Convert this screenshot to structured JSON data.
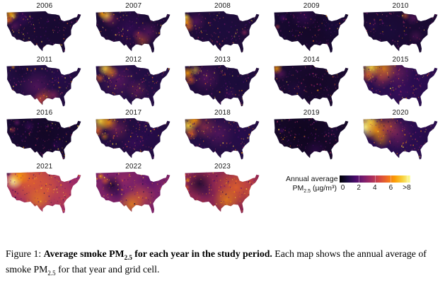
{
  "figure": {
    "legend": {
      "title": "Annual average",
      "unit_pm": "PM",
      "unit_sub": "2.5",
      "unit_rest": " (µg/m³)",
      "tick_labels": [
        "0",
        "2",
        "4",
        "6",
        ">8"
      ],
      "tick_values": [
        0,
        2,
        4,
        6,
        8
      ],
      "scale_min": 0,
      "scale_max": 8,
      "colormap": [
        "#000004",
        "#1b0c41",
        "#4a0c6b",
        "#781c6d",
        "#a52c60",
        "#cf4446",
        "#ed6925",
        "#fb9b06",
        "#f7d03c",
        "#fcffa4"
      ],
      "speckle_bright_colors": [
        "#ed6925",
        "#fb9b06",
        "#f7d03c"
      ],
      "speckle_dark_colors": [
        "#1b0c41",
        "#4a0c6b",
        "#781c6d",
        "#a52c60"
      ]
    },
    "maps": [
      {
        "year": "2006",
        "base": "#1c0b36",
        "speckle": 0.25,
        "blobs": [
          [
            6,
            5,
            11,
            "#fca50a",
            0.9
          ],
          [
            3,
            13,
            7,
            "#ed6925",
            0.75
          ],
          [
            9,
            8,
            4,
            "#f7d03c",
            0.9
          ],
          [
            11,
            21,
            9,
            "#781c6d",
            0.5
          ],
          [
            20,
            10,
            14,
            "#4a0c6b",
            0.5
          ],
          [
            65,
            25,
            38,
            "#14082c",
            0.55
          ]
        ]
      },
      {
        "year": "2007",
        "base": "#1c0b36",
        "speckle": 0.3,
        "blobs": [
          [
            15,
            7,
            10,
            "#f7d03c",
            0.95
          ],
          [
            9,
            4,
            7,
            "#fb9b06",
            0.85
          ],
          [
            20,
            12,
            12,
            "#a52c60",
            0.5
          ],
          [
            62,
            40,
            12,
            "#ed6925",
            0.5
          ],
          [
            56,
            33,
            8,
            "#cf4446",
            0.5
          ],
          [
            70,
            30,
            16,
            "#781c6d",
            0.5
          ],
          [
            45,
            25,
            28,
            "#4a0c6b",
            0.45
          ]
        ]
      },
      {
        "year": "2008",
        "base": "#1e0c38",
        "speckle": 0.22,
        "blobs": [
          [
            3,
            16,
            10,
            "#fb9b06",
            0.95
          ],
          [
            2,
            9,
            6,
            "#f7d03c",
            0.85
          ],
          [
            6,
            23,
            7,
            "#ed6925",
            0.6
          ],
          [
            15,
            15,
            14,
            "#781c6d",
            0.5
          ],
          [
            50,
            25,
            35,
            "#1b0c41",
            0.5
          ],
          [
            79,
            30,
            5,
            "#a52c60",
            0.6
          ]
        ]
      },
      {
        "year": "2009",
        "base": "#170930",
        "speckle": 0.12,
        "blobs": [
          [
            50,
            22,
            42,
            "#12061f",
            0.5
          ],
          [
            5,
            22,
            4,
            "#cf4446",
            0.55
          ],
          [
            40,
            8,
            18,
            "#4a0c6b",
            0.45
          ],
          [
            12,
            10,
            6,
            "#4a0c6b",
            0.6
          ],
          [
            78,
            20,
            20,
            "#1b0c41",
            0.5
          ]
        ]
      },
      {
        "year": "2010",
        "base": "#1a0a32",
        "speckle": 0.15,
        "blobs": [
          [
            56,
            7,
            6,
            "#ed6925",
            0.55
          ],
          [
            66,
            10,
            10,
            "#781c6d",
            0.5
          ],
          [
            35,
            28,
            28,
            "#1b0c41",
            0.5
          ],
          [
            70,
            35,
            10,
            "#781c6d",
            0.35
          ],
          [
            12,
            20,
            10,
            "#2a0a50",
            0.6
          ]
        ]
      },
      {
        "year": "2011",
        "base": "#220d40",
        "speckle": 0.22,
        "blobs": [
          [
            44,
            49,
            11,
            "#cf4446",
            0.8
          ],
          [
            50,
            43,
            12,
            "#ed6925",
            0.5
          ],
          [
            62,
            42,
            10,
            "#a52c60",
            0.6
          ],
          [
            40,
            30,
            22,
            "#781c6d",
            0.5
          ],
          [
            9,
            4,
            3,
            "#fb9b06",
            0.7
          ],
          [
            20,
            10,
            16,
            "#14082c",
            0.6
          ],
          [
            70,
            18,
            18,
            "#2a0a50",
            0.5
          ]
        ]
      },
      {
        "year": "2012",
        "base": "#240e44",
        "speckle": 0.3,
        "blobs": [
          [
            13,
            6,
            10,
            "#f7d03c",
            0.95
          ],
          [
            21,
            11,
            10,
            "#fb9b06",
            0.8
          ],
          [
            6,
            19,
            7,
            "#ed6925",
            0.65
          ],
          [
            30,
            22,
            24,
            "#781c6d",
            0.55
          ],
          [
            78,
            14,
            20,
            "#1b0c41",
            0.6
          ],
          [
            55,
            35,
            15,
            "#a52c60",
            0.4
          ]
        ]
      },
      {
        "year": "2013",
        "base": "#200c3c",
        "speckle": 0.22,
        "blobs": [
          [
            4,
            12,
            9,
            "#fb9b06",
            0.9
          ],
          [
            8,
            21,
            8,
            "#ed6925",
            0.7
          ],
          [
            14,
            8,
            8,
            "#f7d03c",
            0.6
          ],
          [
            28,
            18,
            20,
            "#781c6d",
            0.5
          ],
          [
            70,
            25,
            28,
            "#160b39",
            0.55
          ],
          [
            60,
            40,
            10,
            "#4a0c6b",
            0.4
          ]
        ]
      },
      {
        "year": "2014",
        "base": "#190a30",
        "speckle": 0.15,
        "blobs": [
          [
            4,
            6,
            8,
            "#fb9b06",
            0.85
          ],
          [
            9,
            13,
            9,
            "#781c6d",
            0.55
          ],
          [
            55,
            26,
            38,
            "#12061f",
            0.55
          ],
          [
            30,
            35,
            15,
            "#2a0a50",
            0.4
          ]
        ]
      },
      {
        "year": "2015",
        "base": "#2a0e4e",
        "speckle": 0.35,
        "blobs": [
          [
            11,
            4,
            14,
            "#f7d03c",
            0.95
          ],
          [
            28,
            6,
            18,
            "#fb9b06",
            0.8
          ],
          [
            7,
            15,
            10,
            "#ed6925",
            0.8
          ],
          [
            24,
            18,
            16,
            "#cf4446",
            0.5
          ],
          [
            45,
            12,
            22,
            "#a52c60",
            0.45
          ],
          [
            72,
            28,
            26,
            "#2a0a50",
            0.6
          ],
          [
            50,
            35,
            20,
            "#4a0c6b",
            0.4
          ]
        ]
      },
      {
        "year": "2016",
        "base": "#170930",
        "speckle": 0.15,
        "blobs": [
          [
            50,
            22,
            42,
            "#10051e",
            0.55
          ],
          [
            8,
            17,
            5,
            "#cf4446",
            0.5
          ],
          [
            14,
            7,
            5,
            "#781c6d",
            0.6
          ],
          [
            68,
            38,
            10,
            "#2a0a50",
            0.45
          ],
          [
            30,
            12,
            8,
            "#4a0c6b",
            0.5
          ]
        ]
      },
      {
        "year": "2017",
        "base": "#220d40",
        "speckle": 0.35,
        "blobs": [
          [
            7,
            5,
            14,
            "#f7d03c",
            0.95
          ],
          [
            18,
            7,
            12,
            "#fb9b06",
            0.85
          ],
          [
            3,
            18,
            9,
            "#ed6925",
            0.8
          ],
          [
            12,
            26,
            6,
            "#fb9b06",
            0.5
          ],
          [
            28,
            16,
            18,
            "#a52c60",
            0.5
          ],
          [
            68,
            24,
            28,
            "#2a0a50",
            0.6
          ],
          [
            50,
            35,
            18,
            "#4a0c6b",
            0.4
          ]
        ]
      },
      {
        "year": "2018",
        "base": "#240e44",
        "speckle": 0.35,
        "blobs": [
          [
            5,
            11,
            12,
            "#f7d03c",
            0.95
          ],
          [
            13,
            4,
            11,
            "#fb9b06",
            0.9
          ],
          [
            9,
            22,
            9,
            "#ed6925",
            0.8
          ],
          [
            26,
            13,
            18,
            "#cf4446",
            0.5
          ],
          [
            45,
            22,
            22,
            "#781c6d",
            0.5
          ],
          [
            75,
            25,
            25,
            "#2a0a50",
            0.55
          ]
        ]
      },
      {
        "year": "2019",
        "base": "#150828",
        "speckle": 0.1,
        "blobs": [
          [
            40,
            20,
            35,
            "#0c041a",
            0.6
          ],
          [
            10,
            18,
            5,
            "#4a0c6b",
            0.5
          ],
          [
            55,
            45,
            15,
            "#4a0c6b",
            0.35
          ],
          [
            80,
            20,
            15,
            "#1b0c41",
            0.5
          ]
        ]
      },
      {
        "year": "2020",
        "base": "#2a0e4e",
        "speckle": 0.4,
        "blobs": [
          [
            4,
            13,
            16,
            "#fcffa4",
            0.95
          ],
          [
            10,
            7,
            14,
            "#f7d03c",
            0.9
          ],
          [
            18,
            18,
            16,
            "#fb9b06",
            0.85
          ],
          [
            32,
            13,
            18,
            "#ed6925",
            0.6
          ],
          [
            25,
            30,
            12,
            "#fb9b06",
            0.5
          ],
          [
            45,
            22,
            22,
            "#a52c60",
            0.5
          ],
          [
            75,
            20,
            26,
            "#2a0a50",
            0.6
          ],
          [
            85,
            30,
            15,
            "#1b0c41",
            0.5
          ]
        ]
      },
      {
        "year": "2021",
        "base": "#93256b",
        "speckle": 0.5,
        "blobs": [
          [
            30,
            12,
            40,
            "#ed6925",
            0.8
          ],
          [
            55,
            25,
            40,
            "#ed6925",
            0.55
          ],
          [
            10,
            13,
            12,
            "#fcffa4",
            0.95
          ],
          [
            18,
            6,
            14,
            "#fb9b06",
            0.9
          ],
          [
            42,
            40,
            18,
            "#fb9b06",
            0.5
          ],
          [
            2,
            2,
            5,
            "#1b0c41",
            0.85
          ],
          [
            80,
            35,
            18,
            "#cf4446",
            0.5
          ],
          [
            88,
            18,
            12,
            "#a52c60",
            0.5
          ]
        ]
      },
      {
        "year": "2022",
        "base": "#7c2166",
        "speckle": 0.35,
        "blobs": [
          [
            22,
            20,
            15,
            "#16082c",
            0.85
          ],
          [
            28,
            30,
            12,
            "#2a0a50",
            0.6
          ],
          [
            48,
            45,
            18,
            "#fb9b06",
            0.7
          ],
          [
            60,
            35,
            20,
            "#ed6925",
            0.5
          ],
          [
            7,
            7,
            5,
            "#fb9b06",
            0.75
          ],
          [
            13,
            13,
            6,
            "#ed6925",
            0.6
          ],
          [
            72,
            12,
            18,
            "#4a0c6b",
            0.6
          ],
          [
            88,
            25,
            12,
            "#781c6d",
            0.5
          ],
          [
            38,
            10,
            12,
            "#a52c60",
            0.5
          ]
        ]
      },
      {
        "year": "2023",
        "base": "#8a2550",
        "speckle": 0.45,
        "blobs": [
          [
            20,
            17,
            18,
            "#16082c",
            0.85
          ],
          [
            28,
            28,
            12,
            "#2a0a50",
            0.5
          ],
          [
            68,
            22,
            30,
            "#ed6925",
            0.8
          ],
          [
            55,
            40,
            18,
            "#fb9b06",
            0.6
          ],
          [
            85,
            12,
            15,
            "#cf4446",
            0.6
          ],
          [
            90,
            30,
            12,
            "#ed6925",
            0.6
          ],
          [
            4,
            12,
            4,
            "#fb9b06",
            0.75
          ],
          [
            3,
            22,
            4,
            "#ed6925",
            0.6
          ]
        ]
      }
    ]
  },
  "caption": {
    "segments": [
      {
        "text": "Figure 1: ",
        "bold": false,
        "sub": false
      },
      {
        "text": "Average smoke PM",
        "bold": true,
        "sub": false
      },
      {
        "text": "2.5",
        "bold": true,
        "sub": true
      },
      {
        "text": " for each year in the study period.",
        "bold": true,
        "sub": false
      },
      {
        "text": " Each map shows the annual average of smoke PM",
        "bold": false,
        "sub": false
      },
      {
        "text": "2.5",
        "bold": false,
        "sub": true
      },
      {
        "text": " for that year and grid cell.",
        "bold": false,
        "sub": false
      }
    ]
  }
}
